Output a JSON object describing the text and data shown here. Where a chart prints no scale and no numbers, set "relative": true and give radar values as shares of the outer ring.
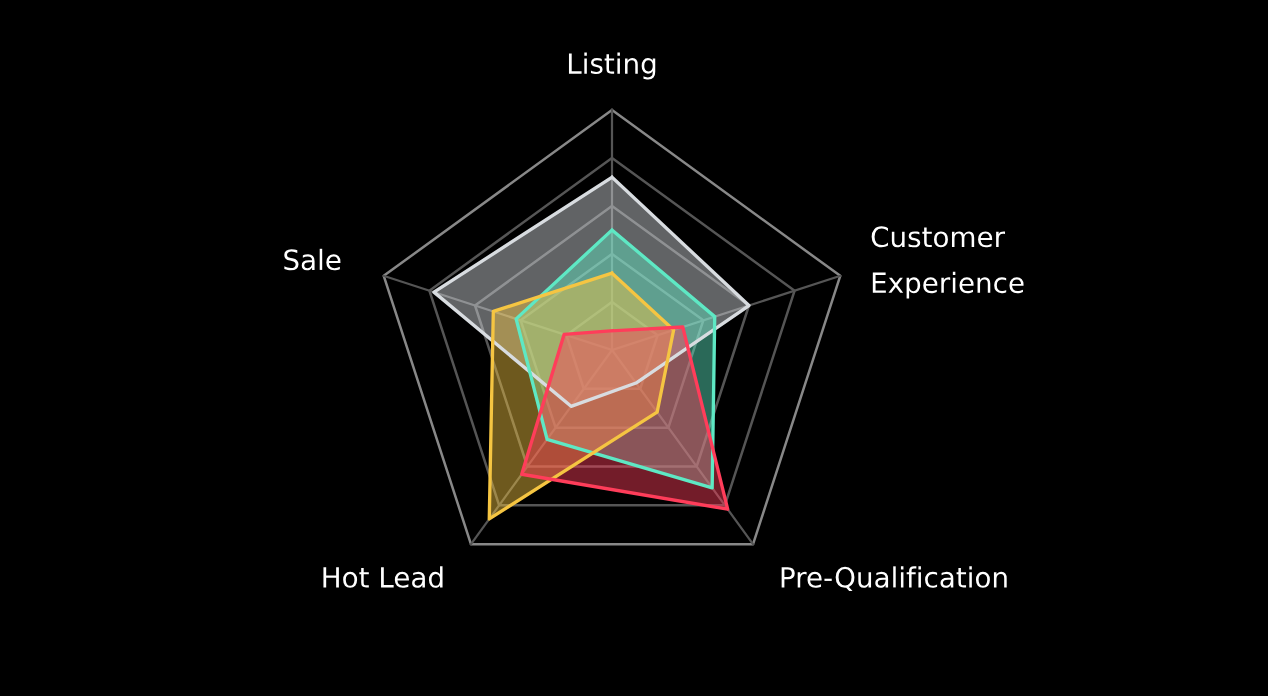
{
  "chart_data": {
    "type": "radar",
    "relative": true,
    "grid": true,
    "categories": [
      "Listing",
      "Customer\nExperience",
      "Pre-Qualification",
      "Hot Lead",
      "Sale"
    ],
    "series": [
      {
        "color": "#d8dce0",
        "values": [
          0.72,
          0.6,
          0.17,
          0.29,
          0.78
        ]
      },
      {
        "color": "#5ee8c4",
        "values": [
          0.5,
          0.45,
          0.71,
          0.46,
          0.42
        ]
      },
      {
        "color": "#f5c542",
        "values": [
          0.32,
          0.27,
          0.32,
          0.87,
          0.52
        ]
      },
      {
        "color": "#ff3d5a",
        "values": [
          0.08,
          0.31,
          0.82,
          0.64,
          0.21
        ]
      }
    ]
  }
}
